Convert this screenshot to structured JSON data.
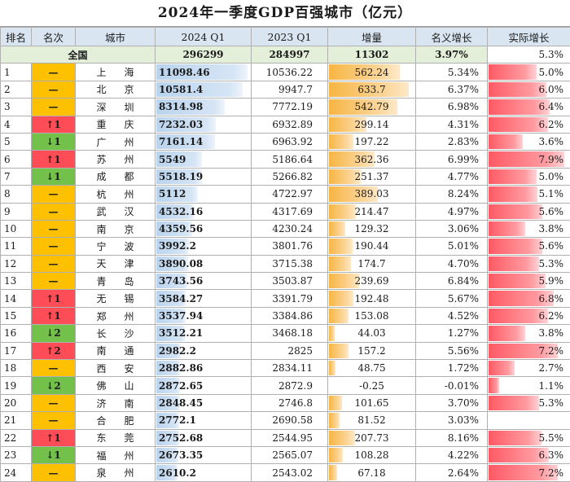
{
  "title": "2024年一季度GDP百强城市（亿元）",
  "headers": {
    "rank": "排名",
    "change": "名次",
    "city": "城市",
    "q2024": "2024 Q1",
    "q2023": "2023 Q1",
    "increase": "增量",
    "nominal": "名义增长",
    "real": "实际增长"
  },
  "total": {
    "label": "全国",
    "q2024": "296299",
    "q2023": "284997",
    "increase": "11302",
    "nominal": "3.97%",
    "real": "5.3%"
  },
  "rows": [
    {
      "rank": "1",
      "change": "—",
      "dir": "same",
      "city": "上海",
      "q2024": "11098.46",
      "q2023": "10536.22",
      "increase": "562.24",
      "nominal": "5.34%",
      "real": "5.0%",
      "v24": 11098.46,
      "vinc": 562.24,
      "vreal": 5.0
    },
    {
      "rank": "2",
      "change": "—",
      "dir": "same",
      "city": "北京",
      "q2024": "10581.4",
      "q2023": "9947.7",
      "increase": "633.7",
      "nominal": "6.37%",
      "real": "6.0%",
      "v24": 10581.4,
      "vinc": 633.7,
      "vreal": 6.0
    },
    {
      "rank": "3",
      "change": "—",
      "dir": "same",
      "city": "深圳",
      "q2024": "8314.98",
      "q2023": "7772.19",
      "increase": "542.79",
      "nominal": "6.98%",
      "real": "6.4%",
      "v24": 8314.98,
      "vinc": 542.79,
      "vreal": 6.4
    },
    {
      "rank": "4",
      "change": "↑1",
      "dir": "up",
      "city": "重庆",
      "q2024": "7232.03",
      "q2023": "6932.89",
      "increase": "299.14",
      "nominal": "4.31%",
      "real": "6.2%",
      "v24": 7232.03,
      "vinc": 299.14,
      "vreal": 6.2
    },
    {
      "rank": "5",
      "change": "↓1",
      "dir": "down",
      "city": "广州",
      "q2024": "7161.14",
      "q2023": "6963.92",
      "increase": "197.22",
      "nominal": "2.83%",
      "real": "3.6%",
      "v24": 7161.14,
      "vinc": 197.22,
      "vreal": 3.6
    },
    {
      "rank": "6",
      "change": "↑1",
      "dir": "up",
      "city": "苏州",
      "q2024": "5549",
      "q2023": "5186.64",
      "increase": "362.36",
      "nominal": "6.99%",
      "real": "7.9%",
      "v24": 5549,
      "vinc": 362.36,
      "vreal": 7.9
    },
    {
      "rank": "7",
      "change": "↓1",
      "dir": "down",
      "city": "成都",
      "q2024": "5518.19",
      "q2023": "5266.82",
      "increase": "251.37",
      "nominal": "4.77%",
      "real": "5.0%",
      "v24": 5518.19,
      "vinc": 251.37,
      "vreal": 5.0
    },
    {
      "rank": "8",
      "change": "—",
      "dir": "same",
      "city": "杭州",
      "q2024": "5112",
      "q2023": "4722.97",
      "increase": "389.03",
      "nominal": "8.24%",
      "real": "5.1%",
      "v24": 5112,
      "vinc": 389.03,
      "vreal": 5.1
    },
    {
      "rank": "9",
      "change": "—",
      "dir": "same",
      "city": "武汉",
      "q2024": "4532.16",
      "q2023": "4317.69",
      "increase": "214.47",
      "nominal": "4.97%",
      "real": "5.6%",
      "v24": 4532.16,
      "vinc": 214.47,
      "vreal": 5.6
    },
    {
      "rank": "10",
      "change": "—",
      "dir": "same",
      "city": "南京",
      "q2024": "4359.56",
      "q2023": "4230.24",
      "increase": "129.32",
      "nominal": "3.06%",
      "real": "3.8%",
      "v24": 4359.56,
      "vinc": 129.32,
      "vreal": 3.8
    },
    {
      "rank": "11",
      "change": "—",
      "dir": "same",
      "city": "宁波",
      "q2024": "3992.2",
      "q2023": "3801.76",
      "increase": "190.44",
      "nominal": "5.01%",
      "real": "5.6%",
      "v24": 3992.2,
      "vinc": 190.44,
      "vreal": 5.6
    },
    {
      "rank": "12",
      "change": "—",
      "dir": "same",
      "city": "天津",
      "q2024": "3890.08",
      "q2023": "3715.38",
      "increase": "174.7",
      "nominal": "4.70%",
      "real": "5.3%",
      "v24": 3890.08,
      "vinc": 174.7,
      "vreal": 5.3
    },
    {
      "rank": "13",
      "change": "—",
      "dir": "same",
      "city": "青岛",
      "q2024": "3743.56",
      "q2023": "3503.87",
      "increase": "239.69",
      "nominal": "6.84%",
      "real": "5.9%",
      "v24": 3743.56,
      "vinc": 239.69,
      "vreal": 5.9
    },
    {
      "rank": "14",
      "change": "↑1",
      "dir": "up",
      "city": "无锡",
      "q2024": "3584.27",
      "q2023": "3391.79",
      "increase": "192.48",
      "nominal": "5.67%",
      "real": "6.8%",
      "v24": 3584.27,
      "vinc": 192.48,
      "vreal": 6.8
    },
    {
      "rank": "15",
      "change": "↑1",
      "dir": "up",
      "city": "郑州",
      "q2024": "3537.94",
      "q2023": "3384.86",
      "increase": "153.08",
      "nominal": "4.52%",
      "real": "6.2%",
      "v24": 3537.94,
      "vinc": 153.08,
      "vreal": 6.2
    },
    {
      "rank": "16",
      "change": "↓2",
      "dir": "down",
      "city": "长沙",
      "q2024": "3512.21",
      "q2023": "3468.18",
      "increase": "44.03",
      "nominal": "1.27%",
      "real": "3.8%",
      "v24": 3512.21,
      "vinc": 44.03,
      "vreal": 3.8
    },
    {
      "rank": "17",
      "change": "↑2",
      "dir": "up",
      "city": "南通",
      "q2024": "2982.2",
      "q2023": "2825",
      "increase": "157.2",
      "nominal": "5.56%",
      "real": "7.2%",
      "v24": 2982.2,
      "vinc": 157.2,
      "vreal": 7.2
    },
    {
      "rank": "18",
      "change": "—",
      "dir": "same",
      "city": "西安",
      "q2024": "2882.86",
      "q2023": "2834.11",
      "increase": "48.75",
      "nominal": "1.72%",
      "real": "2.7%",
      "v24": 2882.86,
      "vinc": 48.75,
      "vreal": 2.7
    },
    {
      "rank": "19",
      "change": "↓2",
      "dir": "down",
      "city": "佛山",
      "q2024": "2872.65",
      "q2023": "2872.9",
      "increase": "-0.25",
      "nominal": "-0.01%",
      "real": "1.1%",
      "v24": 2872.65,
      "vinc": -0.25,
      "vreal": 1.1
    },
    {
      "rank": "20",
      "change": "—",
      "dir": "same",
      "city": "济南",
      "q2024": "2848.45",
      "q2023": "2746.8",
      "increase": "101.65",
      "nominal": "3.70%",
      "real": "5.3%",
      "v24": 2848.45,
      "vinc": 101.65,
      "vreal": 5.3
    },
    {
      "rank": "21",
      "change": "—",
      "dir": "same",
      "city": "合肥",
      "q2024": "2772.1",
      "q2023": "2690.58",
      "increase": "81.52",
      "nominal": "3.03%",
      "real": "",
      "v24": 2772.1,
      "vinc": 81.52,
      "vreal": 0
    },
    {
      "rank": "22",
      "change": "↑1",
      "dir": "up",
      "city": "东莞",
      "q2024": "2752.68",
      "q2023": "2544.95",
      "increase": "207.73",
      "nominal": "8.16%",
      "real": "5.5%",
      "v24": 2752.68,
      "vinc": 207.73,
      "vreal": 5.5
    },
    {
      "rank": "23",
      "change": "↓1",
      "dir": "down",
      "city": "福州",
      "q2024": "2673.35",
      "q2023": "2565.07",
      "increase": "108.28",
      "nominal": "4.22%",
      "real": "6.3%",
      "v24": 2673.35,
      "vinc": 108.28,
      "vreal": 6.3
    },
    {
      "rank": "24",
      "change": "—",
      "dir": "same",
      "city": "泉州",
      "q2024": "2610.2",
      "q2023": "2543.02",
      "increase": "67.18",
      "nominal": "2.64%",
      "real": "7.2%",
      "v24": 2610.2,
      "vinc": 67.18,
      "vreal": 7.2
    }
  ],
  "colors": {
    "same": "#ffc000",
    "up": "#ff4d57",
    "down": "#73c04a",
    "header_bg": "#d9e6f2",
    "total_bg": "#e3efd9",
    "bar_blue": "#b9d3ee",
    "bar_orange": "#f7b543",
    "bar_red": "#ff5a64"
  }
}
